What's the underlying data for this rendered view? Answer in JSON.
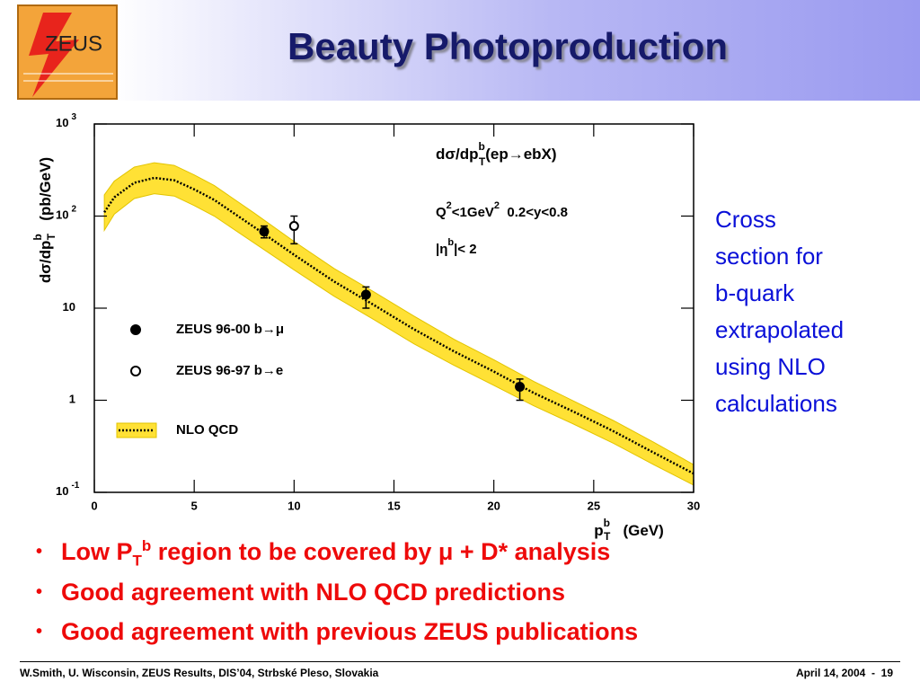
{
  "header": {
    "title": "Beauty Photoproduction",
    "logo": "ZEUS"
  },
  "chart_data": {
    "type": "scatter",
    "log_y": true,
    "annotations": {
      "formula": [
        "dσ/dp",
        "b",
        "T",
        "(ep→ebX)"
      ],
      "cuts": [
        "Q",
        "2",
        "<1GeV",
        "2",
        "  0.2<y<0.8"
      ],
      "eta": [
        "|η",
        "b",
        "|< 2"
      ]
    },
    "ylabel": [
      "dσ/dp",
      "b",
      "T",
      "   (pb/GeV)"
    ],
    "xlabel": [
      "p",
      "b",
      "T",
      "   (GeV)"
    ],
    "xlim": [
      0,
      30
    ],
    "xticks": [
      0,
      5,
      10,
      15,
      20,
      25,
      30
    ],
    "ylim": [
      0.1,
      1000
    ],
    "yticks": [
      {
        "value": 0.1,
        "label": "10",
        "sup": "-1"
      },
      1,
      10,
      {
        "value": 100,
        "label": "10",
        "sup": "2"
      },
      {
        "value": 1000,
        "label": "10",
        "sup": "3"
      }
    ],
    "series": [
      {
        "name": "ZEUS 96-00 b→μ",
        "marker": "filled",
        "color": "#000000",
        "x": [
          8.5,
          13.6,
          21.3
        ],
        "values": [
          68,
          14,
          1.4
        ],
        "err_plus": [
          10,
          3,
          0.3
        ],
        "err_minus": [
          10,
          4,
          0.4
        ]
      },
      {
        "name": "ZEUS 96-97 b→e",
        "marker": "open",
        "color": "#000000",
        "x": [
          10
        ],
        "values": [
          78
        ],
        "err_plus": [
          22
        ],
        "err_minus": [
          28
        ]
      },
      {
        "name": "NLO QCD",
        "marker": "band",
        "color": "#ffe135",
        "x": [
          0.5,
          1,
          2,
          3,
          4,
          5,
          6,
          8,
          10,
          12,
          14,
          16,
          18,
          20,
          22,
          24,
          26,
          28,
          30
        ],
        "values": [
          110,
          160,
          230,
          260,
          245,
          195,
          150,
          76,
          38,
          19.5,
          10.8,
          5.9,
          3.4,
          2.05,
          1.2,
          0.75,
          0.46,
          0.27,
          0.16
        ],
        "band_high": [
          170,
          240,
          340,
          380,
          355,
          280,
          215,
          108,
          53,
          27,
          15,
          8.2,
          4.6,
          2.75,
          1.6,
          0.98,
          0.6,
          0.35,
          0.2
        ],
        "band_low": [
          70,
          105,
          155,
          175,
          165,
          130,
          100,
          51,
          26,
          13.5,
          7.5,
          4.1,
          2.4,
          1.45,
          0.87,
          0.55,
          0.34,
          0.2,
          0.12
        ]
      }
    ]
  },
  "side_note": [
    "Cross",
    "section for",
    "b-quark",
    "extrapolated",
    "using NLO",
    "calculations"
  ],
  "bullets": [
    [
      "Low P",
      "T",
      "b",
      " region to be covered by ",
      "μ",
      " + D* analysis"
    ],
    "Good agreement with NLO QCD predictions",
    "Good agreement with previous ZEUS publications"
  ],
  "footer": {
    "left": "W.Smith, U. Wisconsin, ZEUS Results, DIS’04, Strbské Pleso, Slovakia",
    "right": "April 14, 2004  -  19"
  }
}
